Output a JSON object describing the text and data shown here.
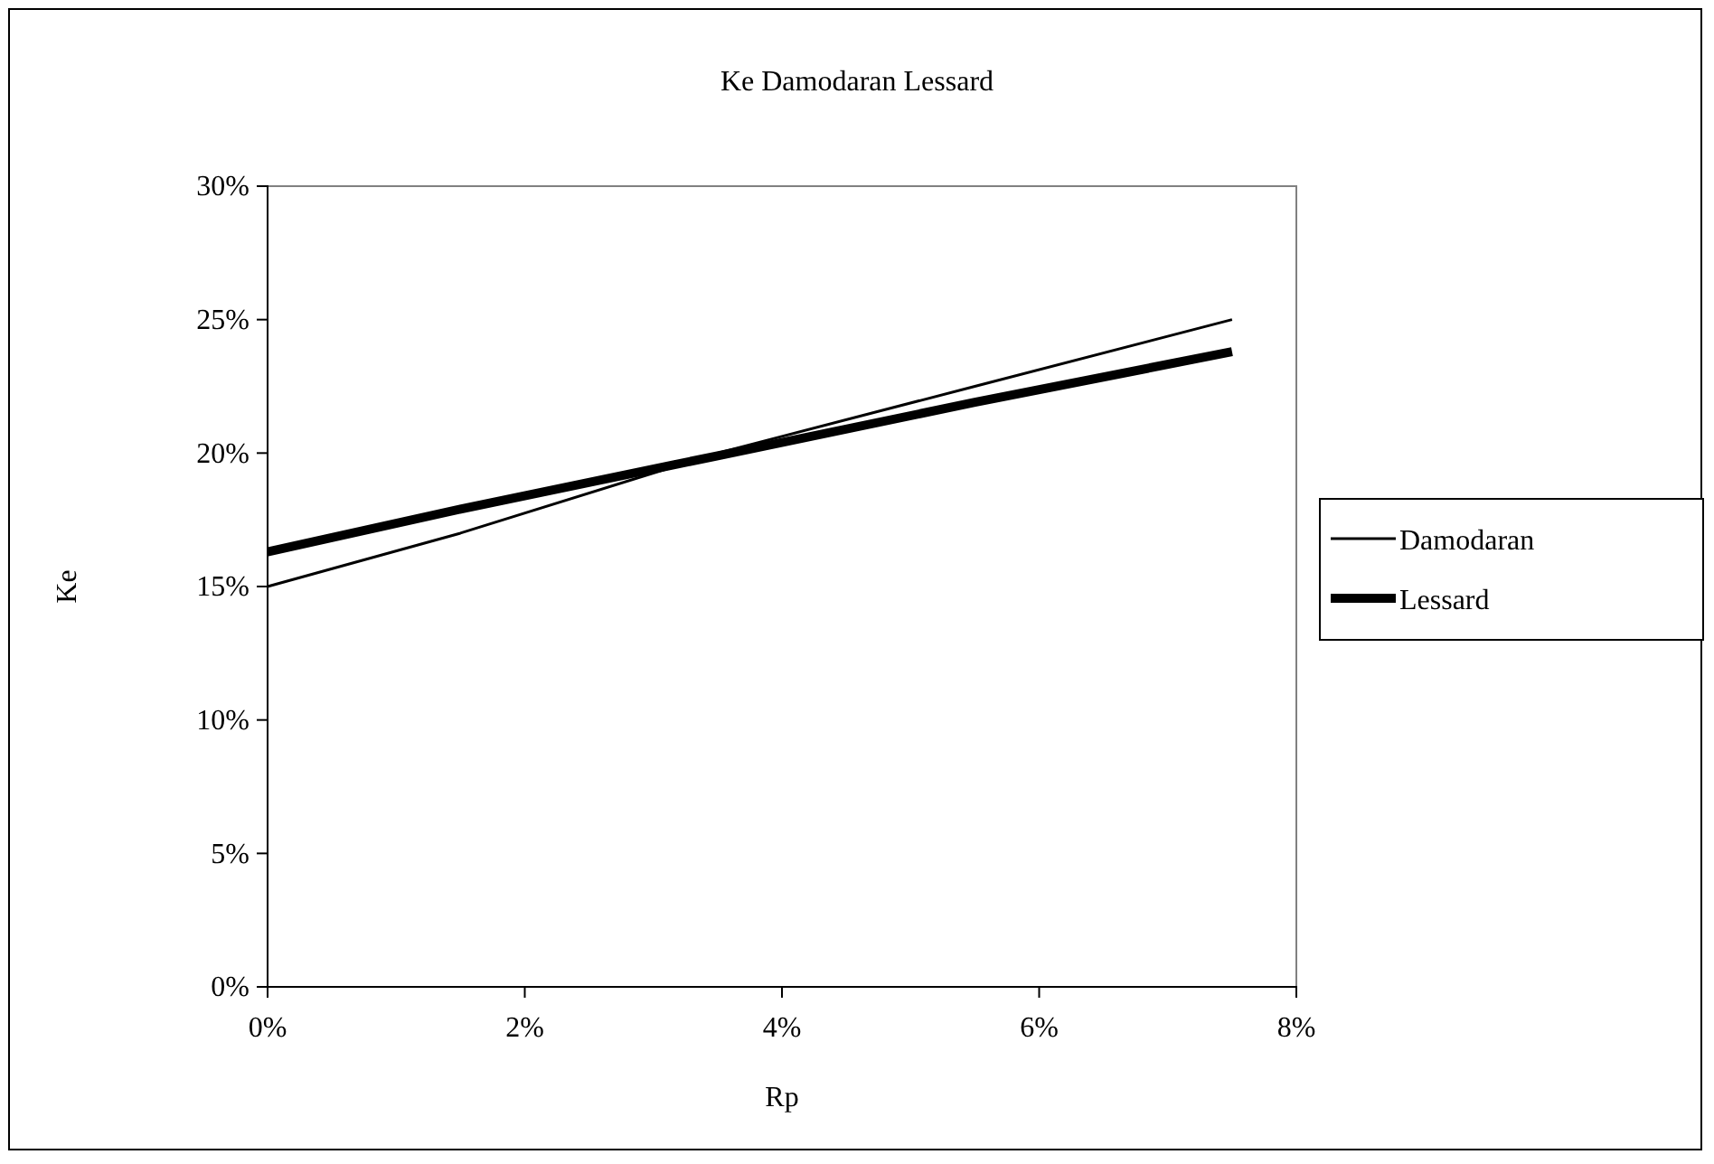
{
  "chart_data": {
    "type": "line",
    "title": "Ke Damodaran Lessard",
    "xlabel": "Rp",
    "ylabel": "Ke",
    "x": [
      0,
      0.015,
      0.035,
      0.055,
      0.075
    ],
    "series": [
      {
        "name": "Damodaran",
        "color": "#000000",
        "values": [
          0.15,
          0.17,
          0.2,
          0.225,
          0.25
        ]
      },
      {
        "name": "Lessard",
        "color": "#000000",
        "values": [
          0.163,
          0.179,
          0.199,
          0.219,
          0.238
        ]
      }
    ],
    "xlim": [
      0,
      0.08
    ],
    "xticks": [
      {
        "value": 0,
        "label": "0%"
      },
      {
        "value": 0.02,
        "label": "2%"
      },
      {
        "value": 0.04,
        "label": "4%"
      },
      {
        "value": 0.06,
        "label": "6%"
      },
      {
        "value": 0.08,
        "label": "8%"
      }
    ],
    "ylim": [
      0,
      0.3
    ],
    "yticks": [
      {
        "value": 0,
        "label": "0%"
      },
      {
        "value": 0.05,
        "label": "5%"
      },
      {
        "value": 0.1,
        "label": "10%"
      },
      {
        "value": 0.15,
        "label": "15%"
      },
      {
        "value": 0.2,
        "label": "20%"
      },
      {
        "value": 0.25,
        "label": "25%"
      },
      {
        "value": 0.3,
        "label": "30%"
      }
    ],
    "grid": false,
    "legend": "right",
    "marker": "none",
    "line_style": "solid"
  }
}
